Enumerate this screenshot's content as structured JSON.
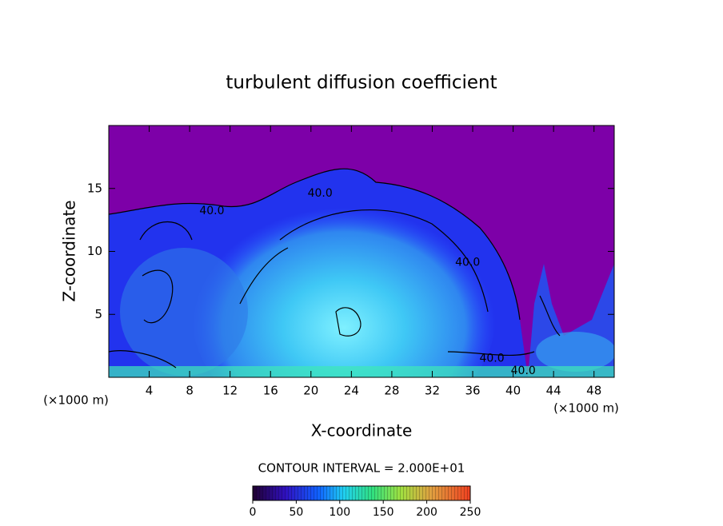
{
  "chart_data": {
    "type": "contour",
    "title": "turbulent diffusion coefficient",
    "x_label": "X-coordinate",
    "y_label": "Z-coordinate",
    "x_unit": "(×1000 m)",
    "y_unit": "(×1000 m)",
    "xlim": [
      0,
      50
    ],
    "xticks": [
      4,
      8,
      12,
      16,
      20,
      24,
      28,
      32,
      36,
      40,
      44,
      48
    ],
    "ylim": [
      0,
      20
    ],
    "yticks": [
      5,
      10,
      15
    ],
    "contour_interval": "CONTOUR INTERVAL = 2.000E+01",
    "contour_labels": [
      {
        "level": 40,
        "label": "40.0",
        "x": 10.2,
        "z": 13.2
      },
      {
        "level": 40,
        "label": "40.0",
        "x": 20.9,
        "z": 14.6
      },
      {
        "level": 40,
        "label": "40.0",
        "x": 35.5,
        "z": 9.1
      },
      {
        "level": 40,
        "label": "40.0",
        "x": 37.9,
        "z": 1.5
      },
      {
        "level": 40,
        "label": "40.0",
        "x": 41.0,
        "z": 0.5
      }
    ],
    "colorbar": {
      "lim": [
        0,
        250
      ],
      "ticks": [
        0,
        50,
        100,
        150,
        200,
        250
      ]
    }
  }
}
